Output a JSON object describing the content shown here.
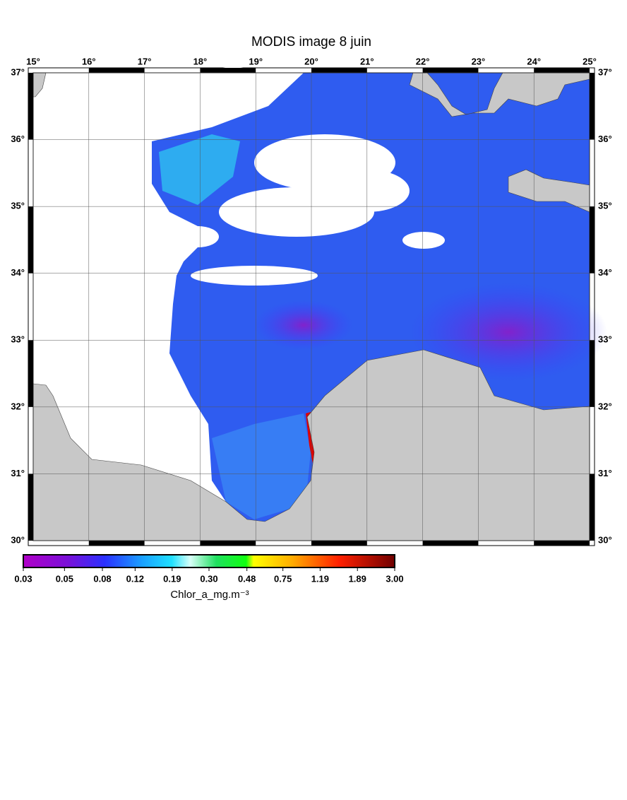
{
  "chart_data": {
    "type": "map",
    "title": "MODIS image 8 juin",
    "xlim": [
      15,
      25
    ],
    "ylim": [
      30,
      37
    ],
    "xticks": [
      {
        "value": 15,
        "label": "15°"
      },
      {
        "value": 16,
        "label": "16°"
      },
      {
        "value": 17,
        "label": "17°"
      },
      {
        "value": 18,
        "label": "18°"
      },
      {
        "value": 19,
        "label": "19°"
      },
      {
        "value": 20,
        "label": "20°"
      },
      {
        "value": 21,
        "label": "21°"
      },
      {
        "value": 22,
        "label": "22°"
      },
      {
        "value": 23,
        "label": "23°"
      },
      {
        "value": 24,
        "label": "24°"
      },
      {
        "value": 25,
        "label": "25°"
      }
    ],
    "yticks": [
      {
        "value": 30,
        "label": "30°"
      },
      {
        "value": 31,
        "label": "31°"
      },
      {
        "value": 32,
        "label": "32°"
      },
      {
        "value": 33,
        "label": "33°"
      },
      {
        "value": 34,
        "label": "34°"
      },
      {
        "value": 35,
        "label": "35°"
      },
      {
        "value": 36,
        "label": "36°"
      },
      {
        "value": 37,
        "label": "37°"
      }
    ],
    "grid": true,
    "colorbar": {
      "label": "Chlor_a_mg.m⁻³",
      "lim": [
        0.03,
        3
      ],
      "log": true,
      "ticks": [
        0.03,
        0.05,
        0.08,
        0.12,
        0.19,
        {
          "value": 0.3,
          "label": "0.30"
        },
        0.48,
        0.75,
        1.19,
        1.89,
        {
          "value": 3,
          "label": "3.00"
        }
      ]
    }
  }
}
